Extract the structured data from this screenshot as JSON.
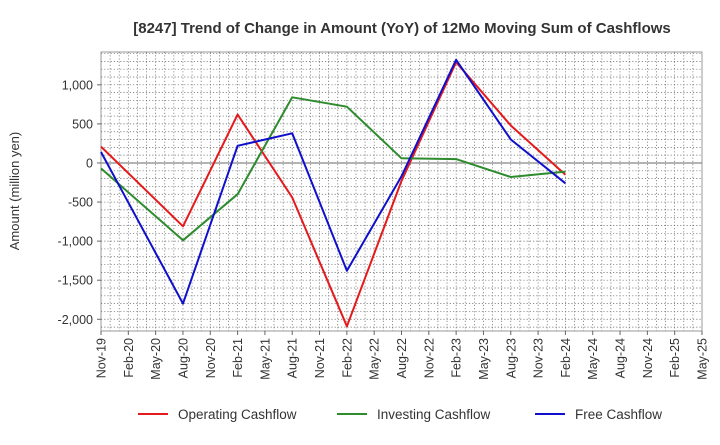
{
  "chart_data": {
    "type": "line",
    "title": "[8247]  Trend of Change in Amount (YoY) of 12Mo Moving Sum of Cashflows",
    "xlabel": "",
    "ylabel": "Amount (million yen)",
    "ylim": [
      -2150,
      1420
    ],
    "yticks": [
      1000,
      500,
      0,
      -500,
      -1000,
      -1500,
      -2000
    ],
    "ytick_labels": [
      "1,000",
      "500",
      "0",
      "-500",
      "-1,000",
      "-1,500",
      "-2,000"
    ],
    "categories": [
      "Nov-19",
      "Feb-20",
      "May-20",
      "Aug-20",
      "Nov-20",
      "Feb-21",
      "May-21",
      "Aug-21",
      "Nov-21",
      "Feb-22",
      "May-22",
      "Aug-22",
      "Nov-22",
      "Feb-23",
      "May-23",
      "Aug-23",
      "Nov-23",
      "Feb-24",
      "May-24",
      "Aug-24",
      "Nov-24",
      "Feb-25",
      "May-25"
    ],
    "legend_position": "bottom",
    "grid": true,
    "series": [
      {
        "name": "Operating Cashflow",
        "color": "#e41a1c",
        "values": [
          210,
          null,
          null,
          -810,
          null,
          620,
          null,
          -440,
          null,
          -2090,
          null,
          -230,
          null,
          1290,
          null,
          480,
          null,
          -150,
          null,
          null,
          null,
          null,
          null
        ]
      },
      {
        "name": "Investing Cashflow",
        "color": "#2e8b2e",
        "values": [
          -70,
          null,
          null,
          -990,
          null,
          -400,
          null,
          840,
          null,
          720,
          null,
          60,
          null,
          50,
          null,
          -180,
          null,
          -110,
          null,
          null,
          null,
          null,
          null
        ]
      },
      {
        "name": "Free Cashflow",
        "color": "#1010cc",
        "values": [
          140,
          null,
          null,
          -1800,
          null,
          220,
          null,
          380,
          null,
          -1380,
          null,
          -170,
          null,
          1320,
          null,
          300,
          null,
          -260,
          null,
          null,
          null,
          null,
          null
        ]
      }
    ]
  }
}
